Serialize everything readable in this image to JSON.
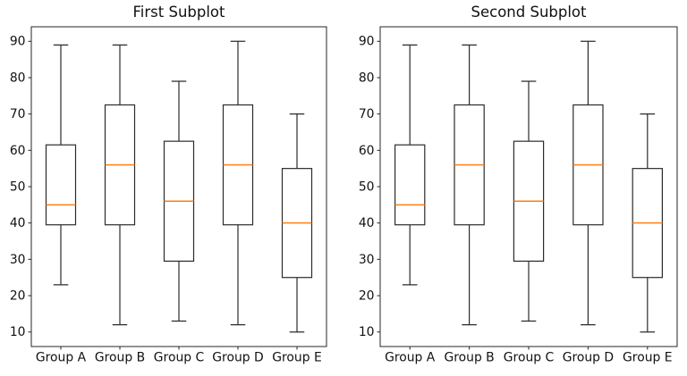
{
  "figure": {
    "background": "#ffffff",
    "text_color": "#111111"
  },
  "chart_data": [
    {
      "type": "boxplot",
      "title": "First Subplot",
      "categories": [
        "Group A",
        "Group B",
        "Group C",
        "Group D",
        "Group E"
      ],
      "series": [
        {
          "name": "Group A",
          "whisker_low": 23,
          "q1": 39.5,
          "median": 45,
          "q3": 61.5,
          "whisker_high": 89
        },
        {
          "name": "Group B",
          "whisker_low": 12,
          "q1": 39.5,
          "median": 56,
          "q3": 72.5,
          "whisker_high": 89
        },
        {
          "name": "Group C",
          "whisker_low": 13,
          "q1": 29.5,
          "median": 46,
          "q3": 62.5,
          "whisker_high": 79
        },
        {
          "name": "Group D",
          "whisker_low": 12,
          "q1": 39.5,
          "median": 56,
          "q3": 72.5,
          "whisker_high": 90
        },
        {
          "name": "Group E",
          "whisker_low": 10,
          "q1": 25,
          "median": 40,
          "q3": 55,
          "whisker_high": 70
        }
      ],
      "yticks": [
        10,
        20,
        30,
        40,
        50,
        60,
        70,
        80,
        90
      ],
      "ylim": [
        6,
        94
      ],
      "xlim": [
        0.5,
        5.5
      ],
      "box_width": 0.5,
      "grid": false,
      "line_color": "#2b2b2b",
      "median_color": "#ff7f0e",
      "spine_color": "#262626"
    },
    {
      "type": "boxplot",
      "title": "Second Subplot",
      "categories": [
        "Group A",
        "Group B",
        "Group C",
        "Group D",
        "Group E"
      ],
      "series": [
        {
          "name": "Group A",
          "whisker_low": 23,
          "q1": 39.5,
          "median": 45,
          "q3": 61.5,
          "whisker_high": 89
        },
        {
          "name": "Group B",
          "whisker_low": 12,
          "q1": 39.5,
          "median": 56,
          "q3": 72.5,
          "whisker_high": 89
        },
        {
          "name": "Group C",
          "whisker_low": 13,
          "q1": 29.5,
          "median": 46,
          "q3": 62.5,
          "whisker_high": 79
        },
        {
          "name": "Group D",
          "whisker_low": 12,
          "q1": 39.5,
          "median": 56,
          "q3": 72.5,
          "whisker_high": 90
        },
        {
          "name": "Group E",
          "whisker_low": 10,
          "q1": 25,
          "median": 40,
          "q3": 55,
          "whisker_high": 70
        }
      ],
      "yticks": [
        10,
        20,
        30,
        40,
        50,
        60,
        70,
        80,
        90
      ],
      "ylim": [
        6,
        94
      ],
      "xlim": [
        0.5,
        5.5
      ],
      "box_width": 0.5,
      "grid": false,
      "line_color": "#2b2b2b",
      "median_color": "#ff7f0e",
      "spine_color": "#262626"
    }
  ]
}
